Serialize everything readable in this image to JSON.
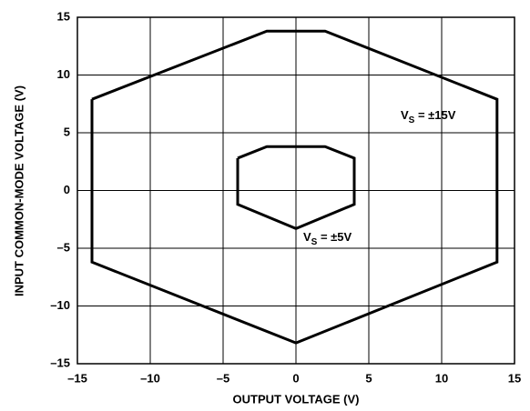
{
  "chart_data": {
    "type": "line",
    "xlabel": "OUTPUT VOLTAGE (V)",
    "ylabel": "INPUT COMMON-MODE VOLTAGE (V)",
    "xlim": [
      -15,
      15
    ],
    "ylim": [
      -15,
      15
    ],
    "xticks": [
      {
        "value": -15,
        "label": "–15"
      },
      {
        "value": -10,
        "label": "–10"
      },
      {
        "value": -5,
        "label": "–5"
      },
      0,
      5,
      10,
      15
    ],
    "yticks": [
      {
        "value": -15,
        "label": "–15"
      },
      {
        "value": -10,
        "label": "–10"
      },
      {
        "value": -5,
        "label": "–5"
      },
      0,
      5,
      10,
      15
    ],
    "grid": true,
    "series": [
      {
        "color": "#000000",
        "label": {
          "main": "V",
          "sub": "S",
          "rest": " = ±15V"
        },
        "x": [
          -14,
          -2,
          2,
          13.8,
          13.8,
          0,
          -14,
          -14
        ],
        "values": [
          7.9,
          13.8,
          13.8,
          7.9,
          -6.2,
          -13.2,
          -6.2,
          7.9
        ]
      },
      {
        "color": "#000000",
        "label": {
          "main": "V",
          "sub": "S",
          "rest": " = ±5V"
        },
        "x": [
          -4,
          -2,
          2,
          4,
          4,
          0,
          -4,
          -4
        ],
        "values": [
          2.8,
          3.8,
          3.8,
          2.8,
          -1.2,
          -3.3,
          -1.2,
          2.8
        ]
      }
    ]
  }
}
